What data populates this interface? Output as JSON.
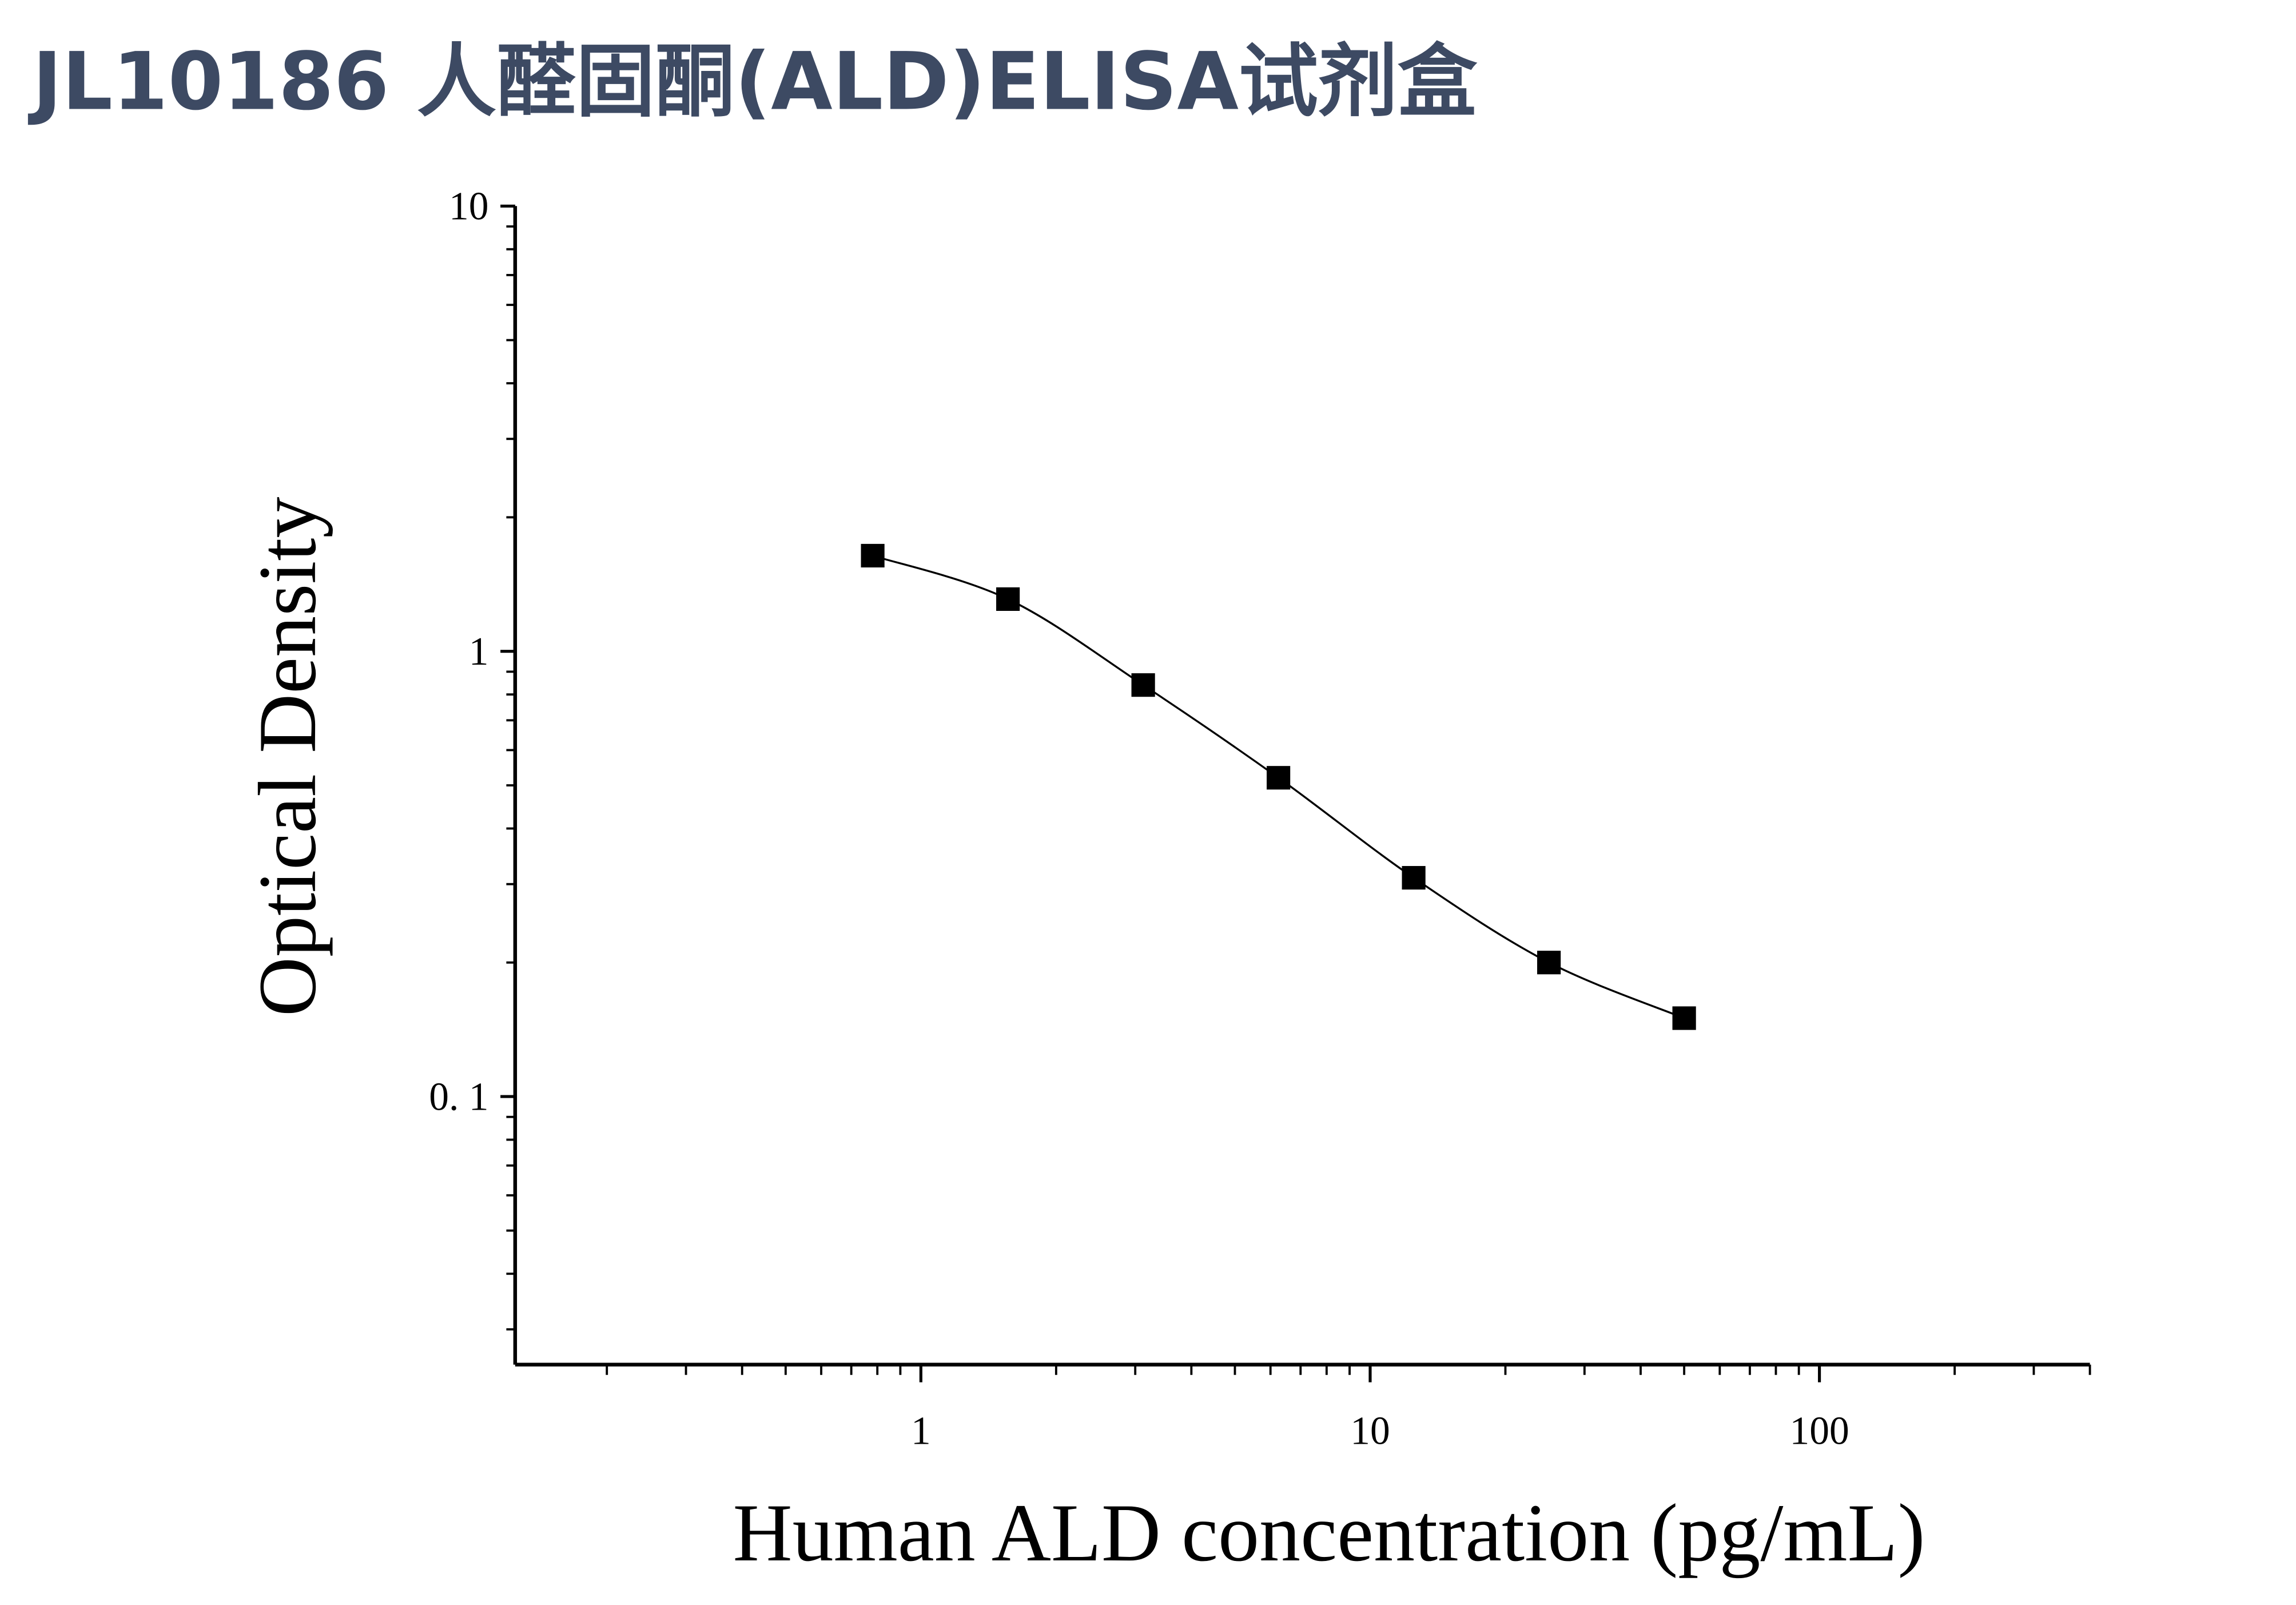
{
  "title": "JL10186 人醛固酮(ALD)ELISA试剂盒",
  "chart_data": {
    "type": "line",
    "x_label": "Human ALD concentration (pg/mL)",
    "y_label": "Optical Density",
    "x": [
      0.78125,
      1.5625,
      3.125,
      6.25,
      12.5,
      25,
      50
    ],
    "series": [
      {
        "color": "#000000",
        "values": [
          1.64,
          1.31,
          0.84,
          0.52,
          0.31,
          0.2,
          0.15
        ]
      }
    ],
    "xscale": "log",
    "yscale": "log",
    "xlim": [
      0.125,
      400
    ],
    "ylim": [
      0.025,
      10
    ],
    "xticks": [
      1,
      10,
      100
    ],
    "yticks": [
      {
        "value": 0.1,
        "label": "0. 1"
      },
      1,
      10
    ],
    "xminorticks": [
      0.2,
      0.3,
      0.4,
      0.5,
      0.6,
      0.7,
      0.8,
      0.9,
      2,
      3,
      4,
      5,
      6,
      7,
      8,
      9,
      20,
      30,
      40,
      50,
      60,
      70,
      80,
      90,
      200,
      300,
      400
    ],
    "yminorticks": [
      0.03,
      0.04,
      0.05,
      0.06,
      0.07,
      0.08,
      0.09,
      0.2,
      0.3,
      0.4,
      0.5,
      0.6,
      0.7,
      0.8,
      0.9,
      2,
      3,
      4,
      5,
      6,
      7,
      8,
      9
    ],
    "marker": "square",
    "grid": false
  }
}
